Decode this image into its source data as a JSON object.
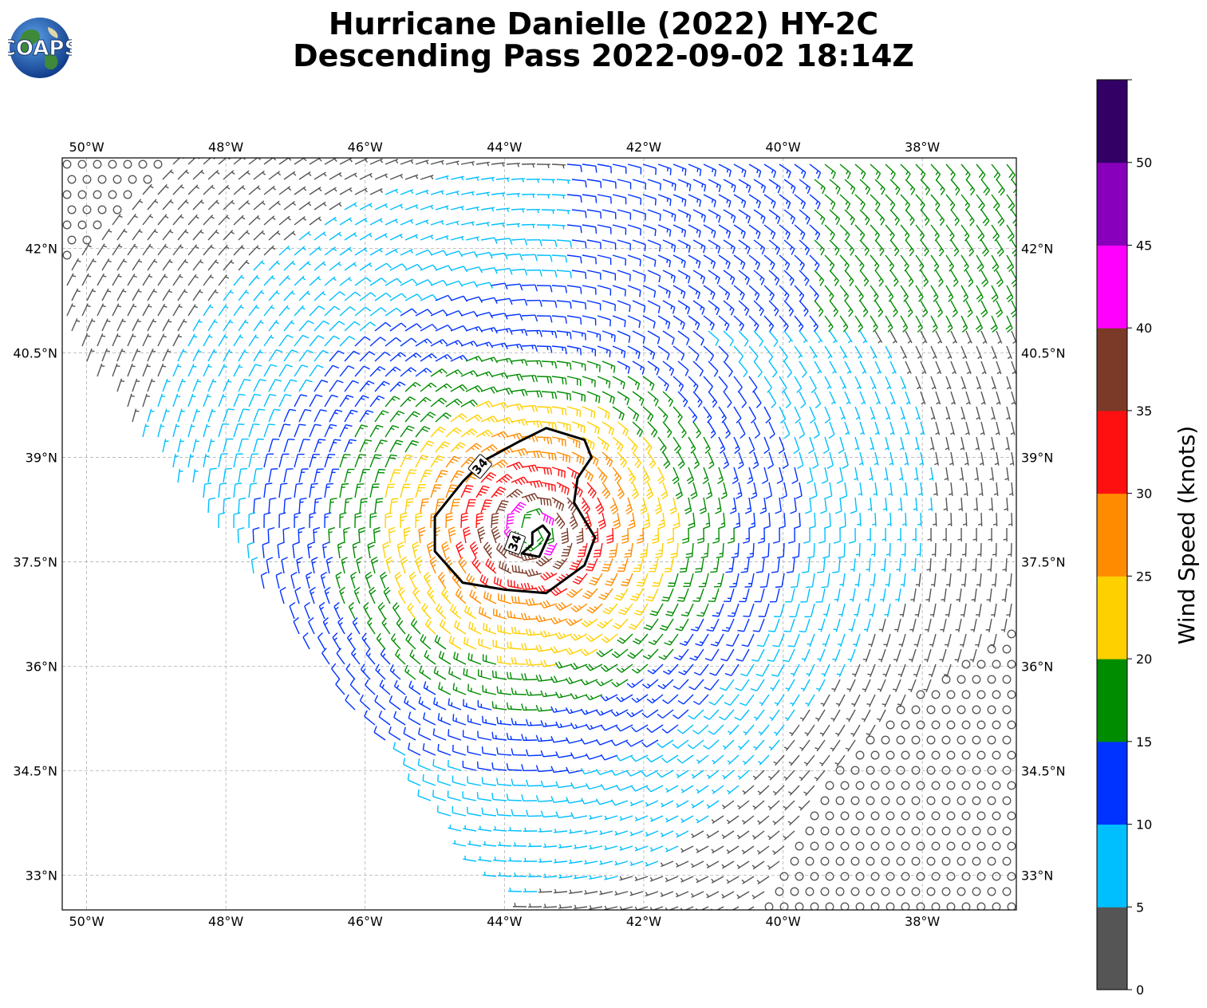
{
  "header": {
    "title_line1": "Hurricane Danielle (2022) HY-2C",
    "title_line2": "Descending Pass 2022-09-02 18:14Z"
  },
  "logo": {
    "text": "COAPS",
    "icon": "globe-icon"
  },
  "map": {
    "lon_range": [
      -50.35,
      -36.65
    ],
    "lat_range": [
      32.5,
      43.3
    ],
    "lon_ticks": [
      {
        "v": -50,
        "label": "50°W"
      },
      {
        "v": -48,
        "label": "48°W"
      },
      {
        "v": -46,
        "label": "46°W"
      },
      {
        "v": -44,
        "label": "44°W"
      },
      {
        "v": -42,
        "label": "42°W"
      },
      {
        "v": -40,
        "label": "40°W"
      },
      {
        "v": -38,
        "label": "38°W"
      }
    ],
    "lat_ticks": [
      {
        "v": 42,
        "label": "42°N"
      },
      {
        "v": 40.5,
        "label": "40.5°N"
      },
      {
        "v": 39,
        "label": "39°N"
      },
      {
        "v": 37.5,
        "label": "37.5°N"
      },
      {
        "v": 36,
        "label": "36°N"
      },
      {
        "v": 34.5,
        "label": "34.5°N"
      },
      {
        "v": 33,
        "label": "33°N"
      }
    ],
    "gridlines": true,
    "storm_center": {
      "lon": -43.6,
      "lat": 37.95
    },
    "contour_label": "34",
    "contour_outer": [
      [
        -43.4,
        39.42
      ],
      [
        -42.85,
        39.25
      ],
      [
        -42.75,
        39.0
      ],
      [
        -42.95,
        38.7
      ],
      [
        -43.0,
        38.35
      ],
      [
        -42.85,
        38.1
      ],
      [
        -42.7,
        37.85
      ],
      [
        -42.85,
        37.45
      ],
      [
        -43.4,
        37.05
      ],
      [
        -44.0,
        37.1
      ],
      [
        -44.6,
        37.2
      ],
      [
        -45.0,
        37.65
      ],
      [
        -45.0,
        38.15
      ],
      [
        -44.6,
        38.65
      ],
      [
        -44.3,
        38.95
      ],
      [
        -43.8,
        39.22
      ],
      [
        -43.4,
        39.42
      ]
    ],
    "contour_inner": [
      [
        -43.45,
        38.02
      ],
      [
        -43.35,
        37.9
      ],
      [
        -43.5,
        37.57
      ],
      [
        -43.75,
        37.62
      ],
      [
        -43.6,
        37.75
      ],
      [
        -43.6,
        37.92
      ],
      [
        -43.45,
        38.02
      ]
    ]
  },
  "colorbar": {
    "label": "Wind Speed (knots)",
    "ticks": [
      "0",
      "5",
      "10",
      "15",
      "20",
      "25",
      "30",
      "35",
      "40",
      "45",
      "50"
    ],
    "colors": [
      "#555555",
      "#00bfff",
      "#0033ff",
      "#008c00",
      "#ffd000",
      "#ff8c00",
      "#ff1010",
      "#7b3a28",
      "#ff00ff",
      "#8800bb",
      "#330066"
    ]
  }
}
